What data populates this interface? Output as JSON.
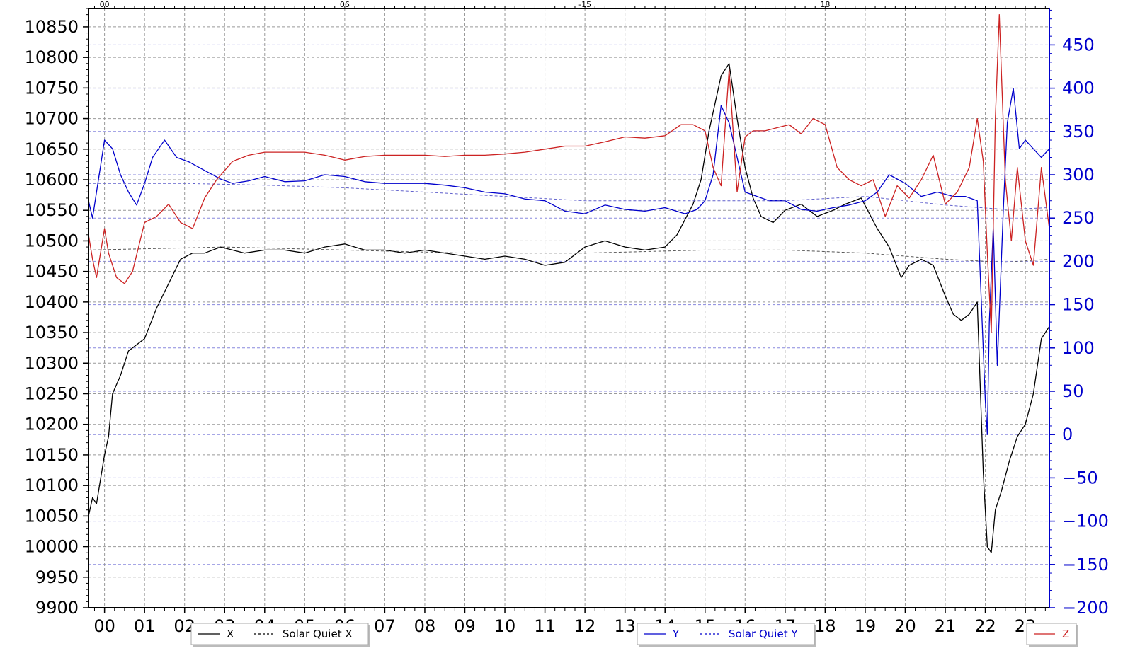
{
  "chart_data": {
    "type": "line",
    "x_axis": {
      "ticks": [
        "00",
        "01",
        "02",
        "03",
        "04",
        "05",
        "06",
        "07",
        "08",
        "09",
        "10",
        "11",
        "12",
        "13",
        "14",
        "15",
        "16",
        "17",
        "18",
        "19",
        "20",
        "21",
        "22",
        "23"
      ],
      "range": [
        -0.4,
        23.6
      ],
      "grid": true
    },
    "y_left": {
      "range": [
        9900,
        10880
      ],
      "ticks": [
        9900,
        9950,
        10000,
        10050,
        10100,
        10150,
        10200,
        10250,
        10300,
        10350,
        10400,
        10450,
        10500,
        10550,
        10600,
        10650,
        10700,
        10750,
        10800,
        10850
      ],
      "color": "#000000"
    },
    "y_right": {
      "range": [
        -200,
        492
      ],
      "ticks": [
        -200,
        -150,
        -100,
        -50,
        0,
        50,
        100,
        150,
        200,
        250,
        300,
        350,
        400,
        450
      ],
      "color": "#0000cc"
    },
    "series": [
      {
        "name": "X",
        "axis": "left",
        "color": "#000000",
        "style": "solid",
        "x": [
          -0.4,
          -0.3,
          -0.2,
          0,
          0.1,
          0.2,
          0.4,
          0.6,
          1,
          1.3,
          1.6,
          1.9,
          2.2,
          2.5,
          2.9,
          3.5,
          4,
          4.5,
          5,
          5.5,
          6,
          6.5,
          7,
          7.5,
          8,
          8.5,
          9,
          9.5,
          10,
          10.5,
          11,
          11.5,
          12,
          12.5,
          13,
          13.5,
          14,
          14.3,
          14.7,
          14.9,
          15.1,
          15.4,
          15.6,
          15.8,
          16,
          16.2,
          16.4,
          16.7,
          17,
          17.4,
          17.8,
          18.2,
          18.5,
          18.9,
          19.3,
          19.6,
          19.9,
          20.1,
          20.4,
          20.7,
          21,
          21.2,
          21.4,
          21.6,
          21.8,
          21.95,
          22.05,
          22.15,
          22.25,
          22.4,
          22.6,
          22.8,
          23,
          23.2,
          23.4,
          23.6
        ],
        "y": [
          10050,
          10080,
          10070,
          10150,
          10180,
          10250,
          10280,
          10320,
          10340,
          10390,
          10430,
          10470,
          10480,
          10480,
          10490,
          10480,
          10485,
          10485,
          10480,
          10490,
          10495,
          10485,
          10485,
          10480,
          10485,
          10480,
          10475,
          10470,
          10475,
          10470,
          10460,
          10465,
          10490,
          10500,
          10490,
          10485,
          10490,
          10510,
          10560,
          10600,
          10680,
          10770,
          10790,
          10700,
          10620,
          10570,
          10540,
          10530,
          10550,
          10560,
          10540,
          10550,
          10560,
          10570,
          10520,
          10490,
          10440,
          10460,
          10470,
          10460,
          10410,
          10380,
          10370,
          10380,
          10400,
          10120,
          10000,
          9990,
          10060,
          10090,
          10140,
          10180,
          10200,
          10250,
          10340,
          10360
        ]
      },
      {
        "name": "Solar Quiet X",
        "axis": "left",
        "color": "#555555",
        "style": "dashed",
        "x": [
          -0.4,
          3,
          6,
          9,
          12,
          15,
          17,
          19,
          21,
          22.5,
          23.6
        ],
        "y": [
          10485,
          10490,
          10485,
          10480,
          10480,
          10485,
          10485,
          10480,
          10470,
          10465,
          10470
        ]
      },
      {
        "name": "Y",
        "axis": "right",
        "color": "#0000cc",
        "style": "solid",
        "x": [
          -0.4,
          -0.3,
          -0.2,
          -0.1,
          0,
          0.2,
          0.4,
          0.6,
          0.8,
          1,
          1.2,
          1.5,
          1.8,
          2.1,
          2.5,
          2.9,
          3.2,
          3.6,
          4,
          4.5,
          5,
          5.5,
          6,
          6.5,
          7,
          7.5,
          8,
          8.5,
          9,
          9.5,
          10,
          10.5,
          11,
          11.5,
          12,
          12.5,
          13,
          13.5,
          14,
          14.5,
          14.8,
          15,
          15.2,
          15.4,
          15.6,
          15.8,
          16,
          16.3,
          16.6,
          17,
          17.4,
          17.8,
          18.2,
          18.6,
          19,
          19.3,
          19.6,
          20,
          20.4,
          20.8,
          21.2,
          21.5,
          21.8,
          22,
          22.05,
          22.1,
          22.2,
          22.3,
          22.45,
          22.55,
          22.7,
          22.85,
          23,
          23.2,
          23.4,
          23.6
        ],
        "y": [
          270,
          250,
          280,
          310,
          340,
          330,
          300,
          280,
          265,
          290,
          320,
          340,
          320,
          315,
          305,
          295,
          290,
          293,
          298,
          292,
          293,
          300,
          298,
          292,
          290,
          290,
          290,
          288,
          285,
          280,
          278,
          272,
          270,
          258,
          255,
          265,
          260,
          258,
          262,
          255,
          260,
          270,
          300,
          380,
          360,
          320,
          280,
          275,
          270,
          270,
          260,
          258,
          262,
          265,
          270,
          280,
          300,
          290,
          275,
          280,
          275,
          275,
          270,
          40,
          0,
          130,
          240,
          80,
          260,
          360,
          400,
          330,
          340,
          330,
          320,
          330
        ]
      },
      {
        "name": "Solar Quiet Y",
        "axis": "right",
        "color": "#6060cc",
        "style": "dashed",
        "x": [
          -0.4,
          2,
          4,
          6,
          8,
          10,
          12,
          14,
          16,
          17,
          19,
          21,
          22.5,
          23.6
        ],
        "y": [
          290,
          290,
          288,
          285,
          280,
          275,
          270,
          270,
          270,
          270,
          275,
          265,
          260,
          262
        ]
      },
      {
        "name": "Z",
        "axis": "left",
        "color": "#cc2222",
        "style": "solid",
        "x": [
          -0.4,
          -0.3,
          -0.2,
          0,
          0.1,
          0.3,
          0.5,
          0.7,
          1,
          1.3,
          1.6,
          1.9,
          2.2,
          2.5,
          2.8,
          3.2,
          3.6,
          4,
          4.5,
          5,
          5.5,
          6,
          6.5,
          7,
          7.5,
          8,
          8.5,
          9,
          9.5,
          10,
          10.5,
          11,
          11.5,
          12,
          12.5,
          13,
          13.5,
          14,
          14.4,
          14.7,
          15,
          15.2,
          15.4,
          15.6,
          15.8,
          16,
          16.2,
          16.5,
          16.8,
          17.1,
          17.4,
          17.7,
          18,
          18.3,
          18.6,
          18.9,
          19.2,
          19.5,
          19.8,
          20.1,
          20.4,
          20.7,
          21,
          21.3,
          21.6,
          21.8,
          21.95,
          22.05,
          22.15,
          22.25,
          22.35,
          22.5,
          22.65,
          22.8,
          23,
          23.2,
          23.4,
          23.6
        ],
        "y": [
          10510,
          10470,
          10440,
          10520,
          10480,
          10440,
          10430,
          10450,
          10530,
          10540,
          10560,
          10530,
          10520,
          10570,
          10600,
          10630,
          10640,
          10645,
          10645,
          10645,
          10640,
          10632,
          10638,
          10640,
          10640,
          10640,
          10638,
          10640,
          10640,
          10642,
          10645,
          10650,
          10655,
          10655,
          10662,
          10670,
          10668,
          10672,
          10690,
          10690,
          10680,
          10620,
          10590,
          10780,
          10580,
          10670,
          10680,
          10680,
          10685,
          10690,
          10675,
          10700,
          10690,
          10620,
          10600,
          10590,
          10600,
          10540,
          10590,
          10570,
          10600,
          10640,
          10560,
          10580,
          10620,
          10700,
          10630,
          10480,
          10350,
          10700,
          10870,
          10600,
          10500,
          10620,
          10500,
          10460,
          10620,
          10520
        ]
      }
    ],
    "legends": [
      {
        "entries": [
          {
            "label": "X"
          },
          {
            "label": "Solar Quiet X"
          }
        ],
        "color": "#000000"
      },
      {
        "entries": [
          {
            "label": "Y"
          },
          {
            "label": "Solar Quiet Y"
          }
        ],
        "color": "#0000cc"
      },
      {
        "entries": [
          {
            "label": "Z"
          }
        ],
        "color": "#cc2222"
      }
    ],
    "top_tick_labels": [
      "00",
      "06",
      "-15",
      "18"
    ]
  }
}
